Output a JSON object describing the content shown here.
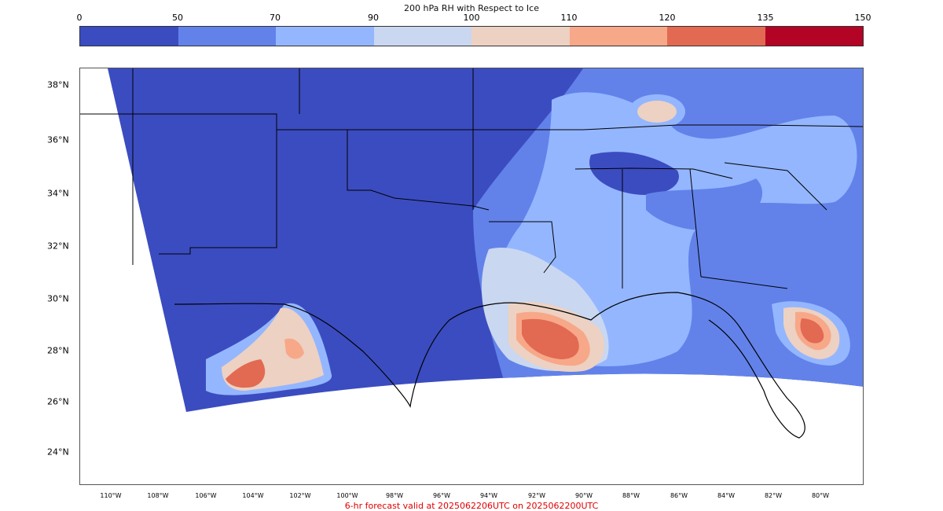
{
  "colorbar": {
    "title": "200 hPa RH with Respect to Ice",
    "ticks": [
      "0",
      "50",
      "70",
      "90",
      "100",
      "110",
      "120",
      "135",
      "150"
    ],
    "colors": [
      "#3b4cc0",
      "#6282ea",
      "#94b6ff",
      "#c9d7f0",
      "#edd1c2",
      "#f7a889",
      "#e26952",
      "#b40426"
    ]
  },
  "map": {
    "lat_labels": [
      "38°N",
      "36°N",
      "34°N",
      "32°N",
      "30°N",
      "28°N",
      "26°N",
      "24°N"
    ],
    "lon_labels": [
      "110°W",
      "108°W",
      "106°W",
      "104°W",
      "102°W",
      "100°W",
      "98°W",
      "96°W",
      "94°W",
      "92°W",
      "90°W",
      "88°W",
      "86°W",
      "84°W",
      "82°W",
      "80°W"
    ]
  },
  "footer": "6-hr forecast valid at 2025062206UTC on 2025062200UTC"
}
